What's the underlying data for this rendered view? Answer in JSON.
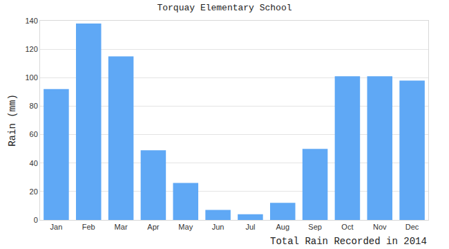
{
  "chart_data": {
    "type": "bar",
    "title": "Torquay Elementary School",
    "ylabel": "Rain (mm)",
    "xlabel": "Total Rain Recorded in 2014",
    "categories": [
      "Jan",
      "Feb",
      "Mar",
      "Apr",
      "May",
      "Jun",
      "Jul",
      "Aug",
      "Sep",
      "Oct",
      "Nov",
      "Dec"
    ],
    "values": [
      92,
      138,
      115,
      49,
      26,
      7,
      4,
      12,
      50,
      101,
      101,
      98
    ],
    "color": "#5fa8f5",
    "ylim": [
      0,
      140
    ],
    "yticks": [
      0,
      20,
      40,
      60,
      80,
      100,
      120,
      140
    ],
    "grid": true
  }
}
